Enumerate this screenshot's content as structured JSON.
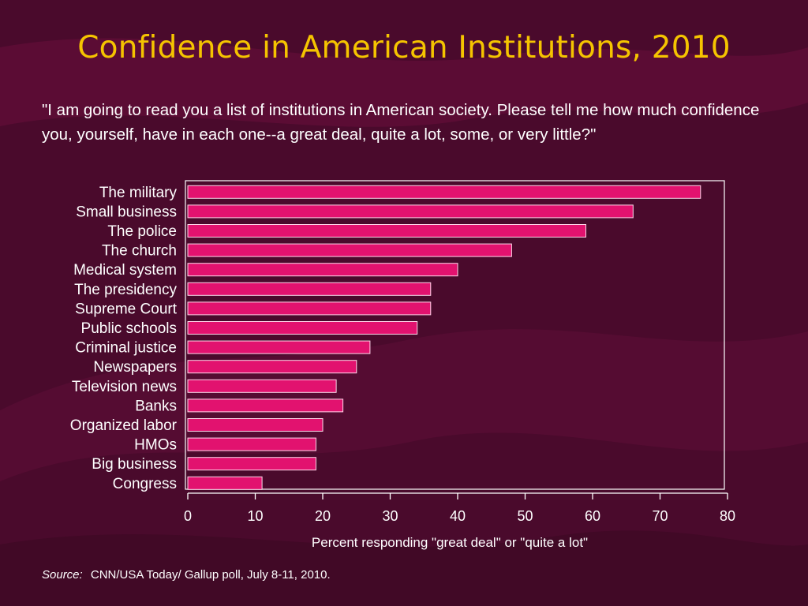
{
  "slide": {
    "title": "Confidence in American Institutions, 2010",
    "question": "\"I am going to read you a list of institutions in American society.  Please tell me how much confidence you, yourself, have in each one--a great deal, quite a lot, some, or very little?\"",
    "source_label": "Source:",
    "source_text": "CNN/USA Today/ Gallup poll, July 8-11, 2010."
  },
  "colors": {
    "background": "#4a0a2c",
    "title": "#f5c400",
    "bar_fill": "#e2126f",
    "bar_stroke": "#ffd6ea",
    "axis": "#ffffff",
    "text": "#ffffff"
  },
  "chart_data": {
    "type": "bar",
    "orientation": "horizontal",
    "categories": [
      "The military",
      "Small business",
      "The police",
      "The church",
      "Medical system",
      "The presidency",
      "Supreme Court",
      "Public schools",
      "Criminal justice",
      "Newspapers",
      "Television news",
      "Banks",
      "Organized labor",
      "HMOs",
      "Big business",
      "Congress"
    ],
    "values": [
      76,
      66,
      59,
      48,
      40,
      36,
      36,
      34,
      27,
      25,
      22,
      23,
      20,
      19,
      19,
      11
    ],
    "xlabel": "Percent responding \"great deal\" or \"quite a lot\"",
    "ylabel": "",
    "xlim": [
      0,
      80
    ],
    "xticks": [
      0,
      10,
      20,
      30,
      40,
      50,
      60,
      70,
      80
    ],
    "grid": false,
    "legend": "none"
  }
}
